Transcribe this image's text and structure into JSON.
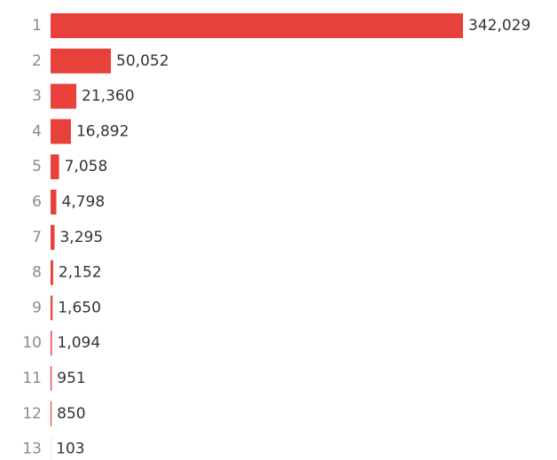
{
  "chart_data": {
    "type": "bar",
    "orientation": "horizontal",
    "categories": [
      "1",
      "2",
      "3",
      "4",
      "5",
      "6",
      "7",
      "8",
      "9",
      "10",
      "11",
      "12",
      "13"
    ],
    "values": [
      342029,
      50052,
      21360,
      16892,
      7058,
      4798,
      3295,
      2152,
      1650,
      1094,
      951,
      850,
      103
    ],
    "value_labels": [
      "342,029",
      "50,052",
      "21,360",
      "16,892",
      "7,058",
      "4,798",
      "3,295",
      "2,152",
      "1,650",
      "1,094",
      "951",
      "850",
      "103"
    ],
    "color": "#e8403a"
  }
}
